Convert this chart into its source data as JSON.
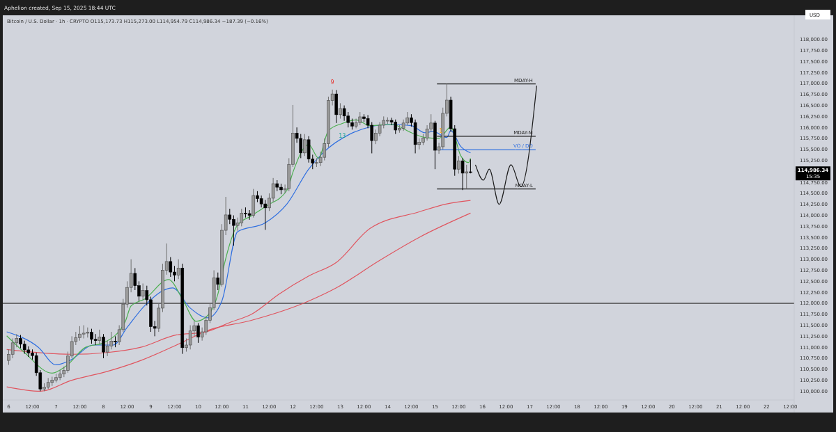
{
  "chart_data": {
    "type": "candlestick",
    "title": "Bitcoin / U.S. Dollar · 1h · CRYPTO  O115,173.73  H115,273.00  L114,954.79  C114,986.34  −187.39 (−0.16%)",
    "ylabel": "USD",
    "annotations": [
      "Aphelion created, Sep 15, 2025 18:44 UTC",
      "114,986.34",
      "15:35",
      {
        "text": "9",
        "x": "2025-09-12T20:00",
        "y": 116940
      },
      {
        "text": "13",
        "x": "2025-09-13T01:00",
        "y": 115720
      },
      {
        "text": "1",
        "x": "2025-09-15T03:00",
        "y": 115830
      }
    ],
    "xlim": [
      "2025-09-05T21:00",
      "2025-09-22T14:00"
    ],
    "ylim": [
      109800,
      118550
    ],
    "xticks": [
      {
        "value": "2025-09-06",
        "label": "6"
      },
      {
        "value": "2025-09-06T12:00",
        "label": "12:00"
      },
      {
        "value": "2025-09-07",
        "label": "7"
      },
      {
        "value": "2025-09-07T12:00",
        "label": "12:00"
      },
      {
        "value": "2025-09-08",
        "label": "8"
      },
      {
        "value": "2025-09-08T12:00",
        "label": "12:00"
      },
      {
        "value": "2025-09-09",
        "label": "9"
      },
      {
        "value": "2025-09-09T12:00",
        "label": "12:00"
      },
      {
        "value": "2025-09-10",
        "label": "10"
      },
      {
        "value": "2025-09-10T12:00",
        "label": "12:00"
      },
      {
        "value": "2025-09-11",
        "label": "11"
      },
      {
        "value": "2025-09-11T12:00",
        "label": "12:00"
      },
      {
        "value": "2025-09-12",
        "label": "12"
      },
      {
        "value": "2025-09-12T12:00",
        "label": "12:00"
      },
      {
        "value": "2025-09-13",
        "label": "13"
      },
      {
        "value": "2025-09-13T12:00",
        "label": "12:00"
      },
      {
        "value": "2025-09-14",
        "label": "14"
      },
      {
        "value": "2025-09-14T12:00",
        "label": "12:00"
      },
      {
        "value": "2025-09-15",
        "label": "15"
      },
      {
        "value": "2025-09-15T12:00",
        "label": "12:00"
      },
      {
        "value": "2025-09-16",
        "label": "16"
      },
      {
        "value": "2025-09-16T12:00",
        "label": "12:00"
      },
      {
        "value": "2025-09-17",
        "label": "17"
      },
      {
        "value": "2025-09-17T12:00",
        "label": "12:00"
      },
      {
        "value": "2025-09-18",
        "label": "18"
      },
      {
        "value": "2025-09-18T12:00",
        "label": "12:00"
      },
      {
        "value": "2025-09-19",
        "label": "19"
      },
      {
        "value": "2025-09-19T12:00",
        "label": "12:00"
      },
      {
        "value": "2025-09-20",
        "label": "20"
      },
      {
        "value": "2025-09-20T12:00",
        "label": "12:00"
      },
      {
        "value": "2025-09-21",
        "label": "21"
      },
      {
        "value": "2025-09-21T12:00",
        "label": "12:00"
      },
      {
        "value": "2025-09-22",
        "label": "22"
      },
      {
        "value": "2025-09-22T12:00",
        "label": "12:00"
      }
    ],
    "yticks": [
      {
        "value": 110000,
        "label": "110,000.00"
      },
      {
        "value": 110250,
        "label": "110,250.00"
      },
      {
        "value": 110500,
        "label": "110,500.00"
      },
      {
        "value": 110750,
        "label": "110,750.00"
      },
      {
        "value": 111000,
        "label": "111,000.00"
      },
      {
        "value": 111250,
        "label": "111,250.00"
      },
      {
        "value": 111500,
        "label": "111,500.00"
      },
      {
        "value": 111750,
        "label": "111,750.00"
      },
      {
        "value": 112000,
        "label": "112,000.00"
      },
      {
        "value": 112250,
        "label": "112,250.00"
      },
      {
        "value": 112500,
        "label": "112,500.00"
      },
      {
        "value": 112750,
        "label": "112,750.00"
      },
      {
        "value": 113000,
        "label": "113,000.00"
      },
      {
        "value": 113250,
        "label": "113,250.00"
      },
      {
        "value": 113500,
        "label": "113,500.00"
      },
      {
        "value": 113750,
        "label": "113,750.00"
      },
      {
        "value": 114000,
        "label": "114,000.00"
      },
      {
        "value": 114250,
        "label": "114,250.00"
      },
      {
        "value": 114500,
        "label": "114,500.00"
      },
      {
        "value": 114750,
        "label": "114,750.00"
      },
      {
        "value": 115000,
        "label": null
      },
      {
        "value": 115250,
        "label": "115,250.00"
      },
      {
        "value": 115500,
        "label": "115,500.00"
      },
      {
        "value": 115750,
        "label": "115,750.00"
      },
      {
        "value": 116000,
        "label": "116,000.00"
      },
      {
        "value": 116250,
        "label": "116,250.00"
      },
      {
        "value": 116500,
        "label": "116,500.00"
      },
      {
        "value": 116750,
        "label": "116,750.00"
      },
      {
        "value": 117000,
        "label": "117,000.00"
      },
      {
        "value": 117250,
        "label": "117,250.00"
      },
      {
        "value": 117500,
        "label": "117,500.00"
      },
      {
        "value": 117750,
        "label": "117,750.00"
      },
      {
        "value": 118000,
        "label": "118,000.00"
      }
    ],
    "ref_lines": [
      {
        "axis": "y",
        "value": 112000,
        "color": "#4a4a4a"
      }
    ],
    "x": [
      "2025-09-06T00:00",
      "2025-09-06T02:00",
      "2025-09-06T04:00",
      "2025-09-06T06:00",
      "2025-09-06T08:00",
      "2025-09-06T10:00",
      "2025-09-06T12:00",
      "2025-09-06T14:00",
      "2025-09-06T16:00",
      "2025-09-06T18:00",
      "2025-09-06T20:00",
      "2025-09-06T22:00",
      "2025-09-07T00:00",
      "2025-09-07T02:00",
      "2025-09-07T04:00",
      "2025-09-07T06:00",
      "2025-09-07T08:00",
      "2025-09-07T10:00",
      "2025-09-07T12:00",
      "2025-09-07T14:00",
      "2025-09-07T16:00",
      "2025-09-07T18:00",
      "2025-09-07T20:00",
      "2025-09-07T22:00",
      "2025-09-08T00:00",
      "2025-09-08T02:00",
      "2025-09-08T04:00",
      "2025-09-08T06:00",
      "2025-09-08T08:00",
      "2025-09-08T10:00",
      "2025-09-08T12:00",
      "2025-09-08T14:00",
      "2025-09-08T16:00",
      "2025-09-08T18:00",
      "2025-09-08T20:00",
      "2025-09-08T22:00",
      "2025-09-09T00:00",
      "2025-09-09T02:00",
      "2025-09-09T04:00",
      "2025-09-09T06:00",
      "2025-09-09T08:00",
      "2025-09-09T10:00",
      "2025-09-09T12:00",
      "2025-09-09T14:00",
      "2025-09-09T16:00",
      "2025-09-09T18:00",
      "2025-09-09T20:00",
      "2025-09-09T22:00",
      "2025-09-10T00:00",
      "2025-09-10T02:00",
      "2025-09-10T04:00",
      "2025-09-10T06:00",
      "2025-09-10T08:00",
      "2025-09-10T10:00",
      "2025-09-10T12:00",
      "2025-09-10T14:00",
      "2025-09-10T16:00",
      "2025-09-10T18:00",
      "2025-09-10T20:00",
      "2025-09-10T22:00",
      "2025-09-11T00:00",
      "2025-09-11T02:00",
      "2025-09-11T04:00",
      "2025-09-11T06:00",
      "2025-09-11T08:00",
      "2025-09-11T10:00",
      "2025-09-11T12:00",
      "2025-09-11T14:00",
      "2025-09-11T16:00",
      "2025-09-11T18:00",
      "2025-09-11T20:00",
      "2025-09-11T22:00",
      "2025-09-12T00:00",
      "2025-09-12T02:00",
      "2025-09-12T04:00",
      "2025-09-12T06:00",
      "2025-09-12T08:00",
      "2025-09-12T10:00",
      "2025-09-12T12:00",
      "2025-09-12T14:00",
      "2025-09-12T16:00",
      "2025-09-12T18:00",
      "2025-09-12T20:00",
      "2025-09-12T22:00",
      "2025-09-13T00:00",
      "2025-09-13T02:00",
      "2025-09-13T04:00",
      "2025-09-13T06:00",
      "2025-09-13T08:00",
      "2025-09-13T10:00",
      "2025-09-13T12:00",
      "2025-09-13T14:00",
      "2025-09-13T16:00",
      "2025-09-13T18:00",
      "2025-09-13T20:00",
      "2025-09-13T22:00",
      "2025-09-14T00:00",
      "2025-09-14T02:00",
      "2025-09-14T04:00",
      "2025-09-14T06:00",
      "2025-09-14T08:00",
      "2025-09-14T10:00",
      "2025-09-14T12:00",
      "2025-09-14T14:00",
      "2025-09-14T16:00",
      "2025-09-14T18:00",
      "2025-09-14T20:00",
      "2025-09-14T22:00",
      "2025-09-15T00:00",
      "2025-09-15T02:00",
      "2025-09-15T04:00",
      "2025-09-15T06:00",
      "2025-09-15T08:00",
      "2025-09-15T10:00",
      "2025-09-15T12:00",
      "2025-09-15T14:00",
      "2025-09-15T16:00",
      "2025-09-15T18:00"
    ],
    "ohlc": [
      [
        110700,
        110950,
        110600,
        110840
      ],
      [
        110840,
        111200,
        110750,
        111100
      ],
      [
        111100,
        111300,
        111000,
        111200
      ],
      [
        111200,
        111280,
        110980,
        111070
      ],
      [
        111070,
        111150,
        110850,
        110940
      ],
      [
        110940,
        111020,
        110780,
        110870
      ],
      [
        110870,
        110950,
        110720,
        110810
      ],
      [
        110810,
        110880,
        110350,
        110420
      ],
      [
        110420,
        110480,
        110000,
        110050
      ],
      [
        110050,
        110180,
        110000,
        110090
      ],
      [
        110090,
        110300,
        110050,
        110200
      ],
      [
        110200,
        110330,
        110120,
        110250
      ],
      [
        110250,
        110400,
        110200,
        110310
      ],
      [
        110310,
        110480,
        110250,
        110390
      ],
      [
        110390,
        110560,
        110320,
        110470
      ],
      [
        110470,
        110900,
        110420,
        110800
      ],
      [
        110800,
        111250,
        110750,
        111130
      ],
      [
        111130,
        111350,
        111050,
        111220
      ],
      [
        111220,
        111480,
        111150,
        111300
      ],
      [
        111300,
        111500,
        111200,
        111320
      ],
      [
        111320,
        111450,
        111220,
        111340
      ],
      [
        111340,
        111420,
        111080,
        111180
      ],
      [
        111180,
        111300,
        111050,
        111150
      ],
      [
        111150,
        111400,
        111080,
        111230
      ],
      [
        111230,
        111300,
        110750,
        110890
      ],
      [
        110890,
        111150,
        110800,
        111030
      ],
      [
        111030,
        111350,
        110950,
        111140
      ],
      [
        111140,
        111250,
        111000,
        111120
      ],
      [
        111120,
        111500,
        111050,
        111400
      ],
      [
        111400,
        112100,
        111350,
        111980
      ],
      [
        111980,
        112500,
        111900,
        112360
      ],
      [
        112360,
        113000,
        112250,
        112680
      ],
      [
        112680,
        112800,
        112300,
        112400
      ],
      [
        112400,
        112500,
        112050,
        112160
      ],
      [
        112160,
        112450,
        112080,
        112290
      ],
      [
        112290,
        112400,
        111950,
        112080
      ],
      [
        112080,
        112150,
        111350,
        111470
      ],
      [
        111470,
        111600,
        111250,
        111430
      ],
      [
        111430,
        112000,
        111350,
        111890
      ],
      [
        111890,
        112900,
        111800,
        112750
      ],
      [
        112750,
        113360,
        112650,
        112950
      ],
      [
        112950,
        113050,
        112600,
        112710
      ],
      [
        112710,
        112850,
        112500,
        112640
      ],
      [
        112640,
        113000,
        112550,
        112800
      ],
      [
        112800,
        112900,
        110850,
        110990
      ],
      [
        110990,
        111200,
        110900,
        111050
      ],
      [
        111050,
        111500,
        110950,
        111370
      ],
      [
        111370,
        111600,
        111250,
        111490
      ],
      [
        111490,
        111550,
        111100,
        111230
      ],
      [
        111230,
        111450,
        111150,
        111350
      ],
      [
        111350,
        111700,
        111280,
        111610
      ],
      [
        111610,
        112000,
        111550,
        111900
      ],
      [
        111900,
        112750,
        111850,
        112580
      ],
      [
        112580,
        112700,
        112300,
        112430
      ],
      [
        112430,
        113800,
        112380,
        113660
      ],
      [
        113660,
        114420,
        113550,
        114010
      ],
      [
        114010,
        114150,
        113800,
        113910
      ],
      [
        113910,
        114000,
        113310,
        113770
      ],
      [
        113770,
        113950,
        113650,
        113830
      ],
      [
        113830,
        114150,
        113750,
        114050
      ],
      [
        114050,
        114180,
        113950,
        114040
      ],
      [
        114040,
        114120,
        113900,
        114000
      ],
      [
        114000,
        114600,
        113950,
        114450
      ],
      [
        114450,
        114550,
        114300,
        114380
      ],
      [
        114380,
        114450,
        114180,
        114260
      ],
      [
        114260,
        114350,
        113670,
        114170
      ],
      [
        114170,
        114500,
        114100,
        114390
      ],
      [
        114390,
        114850,
        114300,
        114720
      ],
      [
        114720,
        114800,
        114550,
        114640
      ],
      [
        114640,
        114720,
        114480,
        114580
      ],
      [
        114580,
        114700,
        114500,
        114610
      ],
      [
        114610,
        115300,
        114550,
        115160
      ],
      [
        115160,
        116510,
        115100,
        115870
      ],
      [
        115870,
        116000,
        115650,
        115750
      ],
      [
        115750,
        115850,
        115300,
        115420
      ],
      [
        115420,
        115850,
        115350,
        115720
      ],
      [
        115720,
        115800,
        115200,
        115280
      ],
      [
        115280,
        115380,
        115050,
        115190
      ],
      [
        115190,
        115300,
        115100,
        115200
      ],
      [
        115200,
        115450,
        115120,
        115320
      ],
      [
        115320,
        115750,
        115250,
        115630
      ],
      [
        115630,
        116700,
        115550,
        116610
      ],
      [
        116610,
        116860,
        116500,
        116760
      ],
      [
        116760,
        116850,
        116100,
        116290
      ],
      [
        116290,
        116550,
        116200,
        116430
      ],
      [
        116430,
        116500,
        116150,
        116260
      ],
      [
        116260,
        116350,
        116000,
        116110
      ],
      [
        116110,
        116200,
        115950,
        116030
      ],
      [
        116030,
        116200,
        115980,
        116110
      ],
      [
        116110,
        116350,
        116050,
        116240
      ],
      [
        116240,
        116300,
        116120,
        116200
      ],
      [
        116200,
        116280,
        115980,
        116050
      ],
      [
        116050,
        116120,
        115410,
        115700
      ],
      [
        115700,
        115950,
        115620,
        115870
      ],
      [
        115870,
        116120,
        115800,
        116050
      ],
      [
        116050,
        116250,
        115980,
        116160
      ],
      [
        116160,
        116230,
        116080,
        116160
      ],
      [
        116160,
        116220,
        116050,
        116120
      ],
      [
        116120,
        116180,
        115850,
        115940
      ],
      [
        115940,
        116050,
        115880,
        115980
      ],
      [
        115980,
        116180,
        115920,
        116100
      ],
      [
        116100,
        116350,
        116050,
        116220
      ],
      [
        116220,
        116300,
        116020,
        116110
      ],
      [
        116110,
        116180,
        115410,
        115610
      ],
      [
        115610,
        115750,
        115500,
        115660
      ],
      [
        115660,
        115850,
        115600,
        115760
      ],
      [
        115760,
        116050,
        115700,
        115960
      ],
      [
        115960,
        116300,
        115900,
        116100
      ],
      [
        116100,
        116150,
        115050,
        115480
      ],
      [
        115480,
        115650,
        115400,
        115560
      ],
      [
        115560,
        116450,
        115500,
        116320
      ],
      [
        116320,
        116990,
        116250,
        116620
      ],
      [
        116620,
        116700,
        115900,
        115970
      ],
      [
        115970,
        116050,
        114900,
        115050
      ],
      [
        115050,
        115350,
        114950,
        115240
      ],
      [
        115240,
        115300,
        114575,
        114960
      ],
      [
        114960,
        115150,
        114600,
        114990
      ],
      [
        114990,
        115273,
        114954.79,
        114986.34
      ]
    ],
    "series": [
      {
        "type": "line",
        "color": "#e0555f",
        "x": [
          "2025-09-05T23:00",
          "2025-09-07T08:00",
          "2025-09-08T02:00",
          "2025-09-08T19:00",
          "2025-09-09T13:00",
          "2025-09-10T03:00",
          "2025-09-10T17:00",
          "2025-09-11T03:00",
          "2025-09-11T17:00",
          "2025-09-12T08:00",
          "2025-09-12T22:00",
          "2025-09-13T15:00",
          "2025-09-14T16:00",
          "2025-09-15T06:00",
          "2025-09-15T18:00"
        ],
        "values": [
          110950,
          110840,
          110880,
          111000,
          111280,
          111340,
          111580,
          111750,
          112210,
          112620,
          112930,
          113700,
          114080,
          114260,
          114340
        ]
      },
      {
        "type": "line",
        "color": "#e0555f",
        "x": [
          "2025-09-05T23:00",
          "2025-09-06T16:00",
          "2025-09-07T08:00",
          "2025-09-08T02:00",
          "2025-09-08T19:00",
          "2025-09-09T13:00",
          "2025-09-10T06:00",
          "2025-09-11T02:00",
          "2025-09-12T08:00",
          "2025-09-12T22:00",
          "2025-09-13T19:00",
          "2025-09-14T16:00",
          "2025-09-15T18:00"
        ],
        "values": [
          110100,
          110000,
          110250,
          110450,
          110700,
          111050,
          111400,
          111600,
          112050,
          112350,
          112950,
          113500,
          114050
        ]
      },
      {
        "type": "line",
        "color": "#2f6fe0",
        "x": [
          "2025-09-05T23:00",
          "2025-09-06T15:00",
          "2025-09-07T00:00",
          "2025-09-07T07:00",
          "2025-09-07T19:00",
          "2025-09-08T05:00",
          "2025-09-08T12:00",
          "2025-09-08T21:00",
          "2025-09-09T11:00",
          "2025-09-09T20:00",
          "2025-09-10T05:00",
          "2025-09-10T12:00",
          "2025-09-10T20:00",
          "2025-09-11T10:00",
          "2025-09-11T21:00",
          "2025-09-12T08:00",
          "2025-09-12T15:00",
          "2025-09-13T05:00",
          "2025-09-13T15:00",
          "2025-09-14T02:00",
          "2025-09-14T12:00",
          "2025-09-14T19:00",
          "2025-09-14T23:00",
          "2025-09-15T06:00",
          "2025-09-15T08:00",
          "2025-09-15T13:00",
          "2025-09-15T18:00"
        ],
        "values": [
          111350,
          111000,
          110600,
          110700,
          111050,
          111050,
          111450,
          111950,
          112350,
          111890,
          111670,
          112050,
          113630,
          113830,
          114260,
          115050,
          115410,
          115850,
          116010,
          116070,
          116040,
          115880,
          115910,
          115770,
          115930,
          115570,
          115420
        ]
      },
      {
        "type": "line",
        "color": "#4caf50",
        "x": [
          "2025-09-05T23:00",
          "2025-09-06T08:00",
          "2025-09-06T22:00",
          "2025-09-07T05:00",
          "2025-09-07T15:00",
          "2025-09-08T00:00",
          "2025-09-08T11:00",
          "2025-09-08T14:00",
          "2025-09-08T21:00",
          "2025-09-09T09:00",
          "2025-09-09T16:00",
          "2025-09-09T23:00",
          "2025-09-10T05:00",
          "2025-09-10T10:00",
          "2025-09-10T13:00",
          "2025-09-10T20:00",
          "2025-09-11T03:00",
          "2025-09-11T10:00",
          "2025-09-11T21:00",
          "2025-09-12T00:00",
          "2025-09-12T08:00",
          "2025-09-12T13:00",
          "2025-09-12T18:00",
          "2025-09-13T01:00",
          "2025-09-13T08:00",
          "2025-09-13T15:00",
          "2025-09-14T02:00",
          "2025-09-14T12:00",
          "2025-09-14T19:00",
          "2025-09-15T02:00",
          "2025-09-15T08:00",
          "2025-09-15T13:00",
          "2025-09-15T17:00",
          "2025-09-15T18:00"
        ],
        "values": [
          111260,
          110880,
          110410,
          110570,
          111000,
          111100,
          111580,
          111940,
          112100,
          112540,
          112100,
          111590,
          111730,
          112210,
          112840,
          113780,
          113990,
          114200,
          114570,
          114980,
          115610,
          115300,
          115930,
          116090,
          116170,
          116040,
          116070,
          115880,
          115770,
          115750,
          116010,
          115360,
          115200,
          115300
        ]
      },
      {
        "type": "line",
        "name": "MDAY-H",
        "color": "#1a1a1a",
        "x": [
          "2025-09-15T01:00",
          "2025-09-17T03:00"
        ],
        "values": [
          116990,
          116990
        ]
      },
      {
        "type": "line",
        "name": "MDAY-M",
        "color": "#1a1a1a",
        "x": [
          "2025-09-15T01:00",
          "2025-09-17T03:00"
        ],
        "values": [
          115800,
          115800
        ]
      },
      {
        "type": "line",
        "name": "VO / DO",
        "color": "#2f6fe0",
        "x": [
          "2025-09-15T01:00",
          "2025-09-17T03:00"
        ],
        "values": [
          115490,
          115490
        ]
      },
      {
        "type": "line",
        "name": "MDAY-L",
        "color": "#1a1a1a",
        "x": [
          "2025-09-15T01:00",
          "2025-09-17T03:00"
        ],
        "values": [
          114600,
          114600
        ]
      },
      {
        "type": "line",
        "color": "#1a1a1a",
        "x": [
          "2025-09-15T20:30",
          "2025-09-16T00:30",
          "2025-09-16T03:30",
          "2025-09-16T08:30",
          "2025-09-16T14:30",
          "2025-09-16T19:30",
          "2025-09-17T03:30"
        ],
        "values": [
          115150,
          114800,
          115050,
          114250,
          115150,
          114650,
          116950
        ]
      }
    ]
  }
}
